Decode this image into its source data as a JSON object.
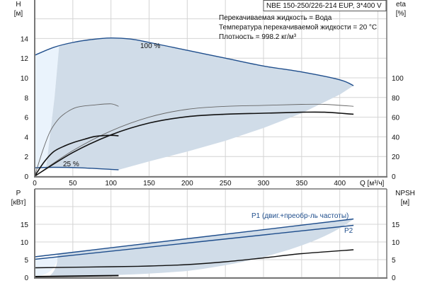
{
  "chart_data": [
    {
      "type": "line",
      "title": "NBE 150-250/226-214 EUP, 3*400 V",
      "annotations": [
        "Перекачиваемая жидкость = Вода",
        "Температура перекачиваемой жидкости = 20 °C",
        "Плотность = 998.2 кг/м³"
      ],
      "xlabel": "Q [м³/ч]",
      "ylabel": "H",
      "ylabel_unit": "[м]",
      "y2label": "eta",
      "y2label_unit": "[%]",
      "xlim": [
        0,
        460
      ],
      "ylim": [
        0,
        18
      ],
      "y2lim": [
        0,
        180
      ],
      "xticks": [
        0,
        50,
        100,
        150,
        200,
        250,
        300,
        350,
        400
      ],
      "yticks": [
        0,
        2,
        4,
        6,
        8,
        10,
        12,
        14
      ],
      "y2ticks": [
        0,
        20,
        40,
        60,
        80,
        100
      ],
      "grid": true,
      "series": [
        {
          "name": "100 %",
          "axis": "H",
          "color": "#1f4e8c",
          "x": [
            0,
            25,
            50,
            75,
            100,
            125,
            150,
            200,
            250,
            300,
            350,
            400,
            418
          ],
          "y": [
            12.3,
            13.1,
            13.6,
            13.9,
            14.05,
            13.95,
            13.6,
            12.8,
            12.0,
            11.2,
            10.6,
            9.8,
            9.2
          ]
        },
        {
          "name": "25 %",
          "axis": "H",
          "color": "#1f4e8c",
          "x": [
            0,
            25,
            60,
            110
          ],
          "y": [
            0.85,
            0.9,
            0.85,
            0.65
          ]
        },
        {
          "name": "eta-100-thin",
          "axis": "eta",
          "color": "#666666",
          "x": [
            0,
            50,
            100,
            150,
            200,
            250,
            300,
            350,
            380,
            418
          ],
          "y": [
            0,
            26,
            46,
            60,
            68,
            71,
            72,
            73,
            73,
            71
          ]
        },
        {
          "name": "eta-100-thick",
          "axis": "eta",
          "color": "#111111",
          "x": [
            0,
            50,
            100,
            150,
            200,
            250,
            300,
            350,
            380,
            418
          ],
          "y": [
            0,
            24,
            42,
            54,
            60.5,
            63,
            64,
            65,
            65,
            63
          ]
        },
        {
          "name": "eta-25-thin",
          "axis": "eta",
          "color": "#666666",
          "x": [
            0,
            10,
            20,
            30,
            40,
            55,
            80,
            100,
            110
          ],
          "y": [
            0,
            25,
            45,
            57,
            64,
            70,
            72.5,
            73.5,
            71
          ]
        },
        {
          "name": "eta-25-thick",
          "axis": "eta",
          "color": "#111111",
          "x": [
            0,
            12,
            25,
            40,
            50,
            65,
            80,
            100,
            110
          ],
          "y": [
            0,
            14,
            25,
            31,
            34,
            37.5,
            40.5,
            41.5,
            41
          ]
        }
      ],
      "series_labels": [
        "100 %",
        "25 %"
      ]
    },
    {
      "type": "line",
      "ylabel": "P",
      "ylabel_unit": "[кВт]",
      "y2label": "NPSH",
      "y2label_unit": "[м]",
      "xlim": [
        0,
        460
      ],
      "ylim": [
        0,
        20
      ],
      "yticks": [
        0,
        5,
        10,
        15
      ],
      "y2ticks": [
        0,
        5,
        10,
        15
      ],
      "grid": true,
      "series": [
        {
          "name": "P1 (двиг.+преобр-ль частоты)",
          "color": "#1f4e8c",
          "x": [
            0,
            418
          ],
          "y": [
            5.8,
            16.5
          ]
        },
        {
          "name": "P2",
          "color": "#1f4e8c",
          "x": [
            0,
            418
          ],
          "y": [
            5.1,
            14.7
          ]
        },
        {
          "name": "NPSH",
          "color": "#111111",
          "x": [
            0,
            100,
            150,
            200,
            250,
            300,
            350,
            418
          ],
          "y": [
            2.7,
            3.0,
            3.2,
            3.6,
            4.4,
            5.5,
            6.7,
            7.8
          ]
        },
        {
          "name": "P-25",
          "color": "#111111",
          "x": [
            0,
            110
          ],
          "y": [
            0.2,
            0.5
          ]
        }
      ]
    }
  ]
}
